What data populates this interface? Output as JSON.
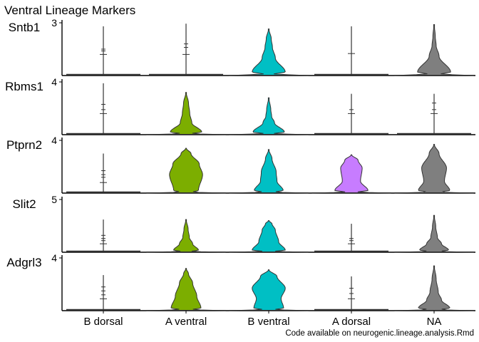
{
  "chart_data": {
    "type": "violin",
    "title": "Ventral Lineage Markers",
    "caption": "Code available on neurogenic.lineage.analysis.Rmd",
    "categories": [
      "B dorsal",
      "A ventral",
      "B ventral",
      "A dorsal",
      "NA"
    ],
    "colors": {
      "B dorsal": "#F8766D",
      "A ventral": "#7CAE00",
      "B ventral": "#00BFC4",
      "A dorsal": "#C77CFF",
      "NA": "#7F7F7F"
    },
    "panels": [
      {
        "gene": "Sntb1",
        "ytick": "3",
        "ymax": 3,
        "violins": [
          {
            "group": "B dorsal",
            "shape": "spike",
            "tip": 2.8,
            "marks": [
              1.2,
              1.5,
              1.4
            ]
          },
          {
            "group": "A ventral",
            "shape": "spike",
            "tip": 2.95,
            "marks": [
              1.2,
              1.6,
              1.8
            ]
          },
          {
            "group": "B ventral",
            "shape": "spindle",
            "tip": 2.65,
            "base": 0.12,
            "bulges": [
              [
                0.2,
                0.4
              ],
              [
                1.0,
                0.16
              ],
              [
                1.6,
                0.09
              ],
              [
                2.1,
                0.06
              ]
            ]
          },
          {
            "group": "A dorsal",
            "shape": "spike",
            "tip": 2.8,
            "marks": [
              1.25
            ]
          },
          {
            "group": "NA",
            "shape": "spindle",
            "tip": 2.9,
            "base": 0.15,
            "bulges": [
              [
                0.2,
                0.4
              ],
              [
                1.1,
                0.12
              ],
              [
                1.7,
                0.05
              ],
              [
                2.2,
                0.03
              ]
            ]
          }
        ]
      },
      {
        "gene": "Rbms1",
        "ytick": "4",
        "ymax": 4,
        "violins": [
          {
            "group": "B dorsal",
            "shape": "spike",
            "tip": 3.9,
            "marks": [
              1.6,
              1.9,
              2.3
            ]
          },
          {
            "group": "A ventral",
            "shape": "spindle",
            "tip": 3.2,
            "base": 0.12,
            "bulges": [
              [
                0.2,
                0.38
              ],
              [
                0.9,
                0.14
              ],
              [
                1.6,
                0.09
              ],
              [
                2.4,
                0.06
              ]
            ]
          },
          {
            "group": "B ventral",
            "shape": "spindle",
            "tip": 2.8,
            "base": 0.12,
            "bulges": [
              [
                0.2,
                0.38
              ],
              [
                0.9,
                0.14
              ],
              [
                1.4,
                0.07
              ],
              [
                1.9,
                0.05
              ]
            ]
          },
          {
            "group": "A dorsal",
            "shape": "spike",
            "tip": 3.1,
            "marks": [
              1.6,
              1.9
            ]
          },
          {
            "group": "NA",
            "shape": "spike",
            "tip": 3.1,
            "marks": [
              1.6,
              1.9,
              2.4
            ]
          }
        ]
      },
      {
        "gene": "Ptprn2",
        "ytick": "4",
        "ymax": 4,
        "violins": [
          {
            "group": "B dorsal",
            "shape": "spike",
            "tip": 3.0,
            "marks": [
              0.8,
              1.2,
              1.4,
              1.7
            ]
          },
          {
            "group": "A ventral",
            "shape": "spindle",
            "tip": 3.4,
            "base": 0.14,
            "bulges": [
              [
                0.2,
                0.3
              ],
              [
                1.4,
                0.4
              ],
              [
                2.2,
                0.32
              ],
              [
                3.0,
                0.12
              ]
            ]
          },
          {
            "group": "B ventral",
            "shape": "spindle",
            "tip": 3.3,
            "base": 0.14,
            "bulges": [
              [
                0.2,
                0.35
              ],
              [
                0.9,
                0.2
              ],
              [
                1.6,
                0.18
              ],
              [
                2.6,
                0.08
              ]
            ]
          },
          {
            "group": "A dorsal",
            "shape": "spindle",
            "tip": 2.9,
            "base": 0.14,
            "bulges": [
              [
                0.2,
                0.4
              ],
              [
                0.9,
                0.22
              ],
              [
                1.9,
                0.26
              ],
              [
                2.5,
                0.16
              ]
            ]
          },
          {
            "group": "NA",
            "shape": "spindle",
            "tip": 3.7,
            "base": 0.15,
            "bulges": [
              [
                0.2,
                0.38
              ],
              [
                0.9,
                0.25
              ],
              [
                1.9,
                0.3
              ],
              [
                3.0,
                0.12
              ]
            ]
          }
        ]
      },
      {
        "gene": "Slit2",
        "ytick": "5",
        "ymax": 5,
        "violins": [
          {
            "group": "B dorsal",
            "shape": "spike",
            "tip": 3.1,
            "marks": [
              0.8,
              1.1,
              1.3,
              1.6
            ]
          },
          {
            "group": "A ventral",
            "shape": "spindle",
            "tip": 3.1,
            "base": 0.12,
            "bulges": [
              [
                0.2,
                0.3
              ],
              [
                0.8,
                0.16
              ],
              [
                1.4,
                0.08
              ],
              [
                2.2,
                0.05
              ]
            ]
          },
          {
            "group": "B ventral",
            "shape": "spindle",
            "tip": 3.0,
            "base": 0.14,
            "bulges": [
              [
                0.2,
                0.4
              ],
              [
                1.0,
                0.24
              ],
              [
                2.1,
                0.16
              ],
              [
                2.7,
                0.08
              ]
            ]
          },
          {
            "group": "A dorsal",
            "shape": "spike",
            "tip": 2.7,
            "marks": [
              0.8,
              1.1,
              1.3
            ]
          },
          {
            "group": "NA",
            "shape": "spindle",
            "tip": 3.5,
            "base": 0.14,
            "bulges": [
              [
                0.2,
                0.35
              ],
              [
                0.8,
                0.18
              ],
              [
                1.4,
                0.08
              ],
              [
                2.4,
                0.04
              ]
            ]
          }
        ]
      },
      {
        "gene": "Adgrl3",
        "ytick": "4",
        "ymax": 4,
        "violins": [
          {
            "group": "B dorsal",
            "shape": "spike",
            "tip": 2.7,
            "marks": [
              0.9,
              1.2,
              1.5,
              1.8
            ]
          },
          {
            "group": "A ventral",
            "shape": "spindle",
            "tip": 3.2,
            "base": 0.14,
            "bulges": [
              [
                0.2,
                0.36
              ],
              [
                1.1,
                0.26
              ],
              [
                2.1,
                0.16
              ],
              [
                2.8,
                0.06
              ]
            ]
          },
          {
            "group": "B ventral",
            "shape": "spindle",
            "tip": 3.1,
            "base": 0.14,
            "bulges": [
              [
                0.2,
                0.36
              ],
              [
                0.9,
                0.3
              ],
              [
                1.7,
                0.4
              ],
              [
                2.6,
                0.2
              ]
            ]
          },
          {
            "group": "A dorsal",
            "shape": "spike",
            "tip": 2.6,
            "marks": [
              0.9,
              1.3,
              1.7
            ]
          },
          {
            "group": "NA",
            "shape": "spindle",
            "tip": 3.4,
            "base": 0.14,
            "bulges": [
              [
                0.2,
                0.38
              ],
              [
                0.8,
                0.18
              ],
              [
                1.4,
                0.1
              ],
              [
                2.4,
                0.05
              ]
            ]
          }
        ]
      }
    ]
  }
}
